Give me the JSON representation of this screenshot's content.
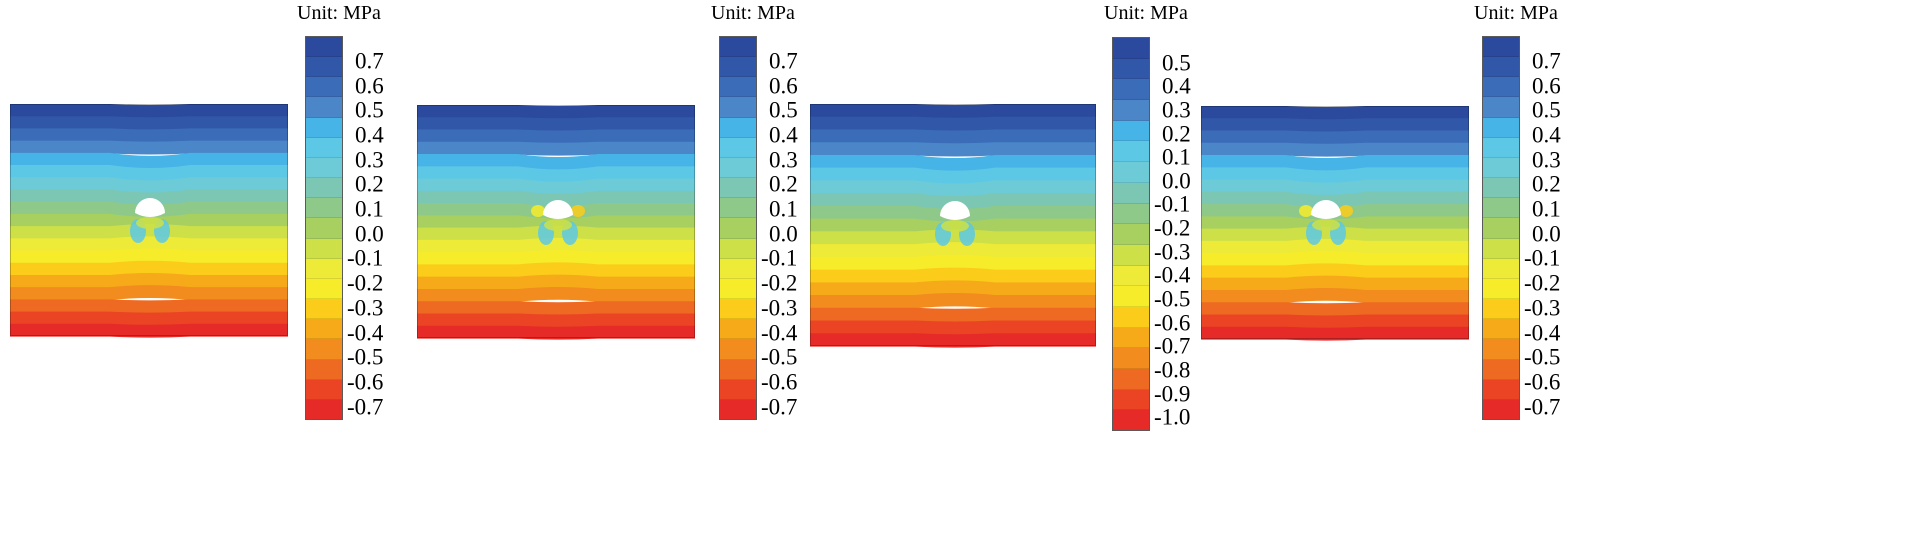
{
  "figure": {
    "unit_label": "Unit:  MPa",
    "panels": [
      {
        "id": "panel-1",
        "legend_ticks": [
          "0.7",
          "0.6",
          "0.5",
          "0.4",
          "0.3",
          "0.2",
          "0.1",
          "0.0",
          "-0.1",
          "-0.2",
          "-0.3",
          "-0.4",
          "-0.5",
          "-0.6",
          "-0.7"
        ],
        "legend_colors": [
          "#2b4a9e",
          "#3157a8",
          "#3a6cb8",
          "#4a86c8",
          "#46b4e6",
          "#5cc8e6",
          "#6ccbd6",
          "#7cc6b4",
          "#8ec98a",
          "#a8d060",
          "#cde048",
          "#eeea38",
          "#f6ec2a",
          "#fccc1a",
          "#f6aa1a",
          "#f28c1e",
          "#ee6a22",
          "#ea4424",
          "#e62a28"
        ],
        "contour_colors": [
          "#2b4a9e",
          "#3157a8",
          "#3a6cb8",
          "#4a86c8",
          "#46b4e6",
          "#5cc8e6",
          "#6ccbd6",
          "#7cc6b4",
          "#8ec98a",
          "#a8d060",
          "#cde048",
          "#eeea38",
          "#f6ec2a",
          "#fccc1a",
          "#f6aa1a",
          "#f28c1e",
          "#ee6a22",
          "#ea4424",
          "#e62a28"
        ]
      },
      {
        "id": "panel-2",
        "legend_ticks": [
          "0.7",
          "0.6",
          "0.5",
          "0.4",
          "0.3",
          "0.2",
          "0.1",
          "0.0",
          "-0.1",
          "-0.2",
          "-0.3",
          "-0.4",
          "-0.5",
          "-0.6",
          "-0.7"
        ],
        "legend_colors": [
          "#2b4a9e",
          "#3157a8",
          "#3a6cb8",
          "#4a86c8",
          "#46b4e6",
          "#5cc8e6",
          "#6ccbd6",
          "#7cc6b4",
          "#8ec98a",
          "#a8d060",
          "#cde048",
          "#eeea38",
          "#f6ec2a",
          "#fccc1a",
          "#f6aa1a",
          "#f28c1e",
          "#ee6a22",
          "#ea4424",
          "#e62a28"
        ],
        "contour_colors": [
          "#2b4a9e",
          "#3157a8",
          "#3a6cb8",
          "#4a86c8",
          "#46b4e6",
          "#5cc8e6",
          "#6ccbd6",
          "#7cc6b4",
          "#8ec98a",
          "#a8d060",
          "#cde048",
          "#eeea38",
          "#f6ec2a",
          "#fccc1a",
          "#f6aa1a",
          "#f28c1e",
          "#ee6a22",
          "#ea4424",
          "#e62a28"
        ]
      },
      {
        "id": "panel-3",
        "legend_ticks": [
          "0.5",
          "0.4",
          "0.3",
          "0.2",
          "0.1",
          "0.0",
          "-0.1",
          "-0.2",
          "-0.3",
          "-0.4",
          "-0.5",
          "-0.6",
          "-0.7",
          "-0.8",
          "-0.9",
          "-1.0"
        ],
        "legend_colors": [
          "#2b4a9e",
          "#3157a8",
          "#3a6cb8",
          "#4a86c8",
          "#46b4e6",
          "#5cc8e6",
          "#6ccbd6",
          "#7cc6b4",
          "#8ec98a",
          "#a8d060",
          "#cde048",
          "#eeea38",
          "#f6ec2a",
          "#fccc1a",
          "#f6aa1a",
          "#f28c1e",
          "#ee6a22",
          "#ea4424",
          "#e62a28"
        ],
        "contour_colors": [
          "#2b4a9e",
          "#3157a8",
          "#3a6cb8",
          "#4a86c8",
          "#46b4e6",
          "#5cc8e6",
          "#6ccbd6",
          "#7cc6b4",
          "#8ec98a",
          "#a8d060",
          "#cde048",
          "#eeea38",
          "#f6ec2a",
          "#fccc1a",
          "#f6aa1a",
          "#f28c1e",
          "#ee6a22",
          "#ea4424",
          "#e62a28"
        ]
      },
      {
        "id": "panel-4",
        "legend_ticks": [
          "0.7",
          "0.6",
          "0.5",
          "0.4",
          "0.3",
          "0.2",
          "0.1",
          "0.0",
          "-0.1",
          "-0.2",
          "-0.3",
          "-0.4",
          "-0.5",
          "-0.6",
          "-0.7"
        ],
        "legend_colors": [
          "#2b4a9e",
          "#3157a8",
          "#3a6cb8",
          "#4a86c8",
          "#46b4e6",
          "#5cc8e6",
          "#6ccbd6",
          "#7cc6b4",
          "#8ec98a",
          "#a8d060",
          "#cde048",
          "#eeea38",
          "#f6ec2a",
          "#fccc1a",
          "#f6aa1a",
          "#f28c1e",
          "#ee6a22",
          "#ea4424",
          "#e62a28"
        ],
        "contour_colors": [
          "#2b4a9e",
          "#3157a8",
          "#3a6cb8",
          "#4a86c8",
          "#46b4e6",
          "#5cc8e6",
          "#6ccbd6",
          "#7cc6b4",
          "#8ec98a",
          "#a8d060",
          "#cde048",
          "#eeea38",
          "#f6ec2a",
          "#fccc1a",
          "#f6aa1a",
          "#f28c1e",
          "#ee6a22",
          "#ea4424",
          "#e62a28"
        ]
      }
    ]
  }
}
